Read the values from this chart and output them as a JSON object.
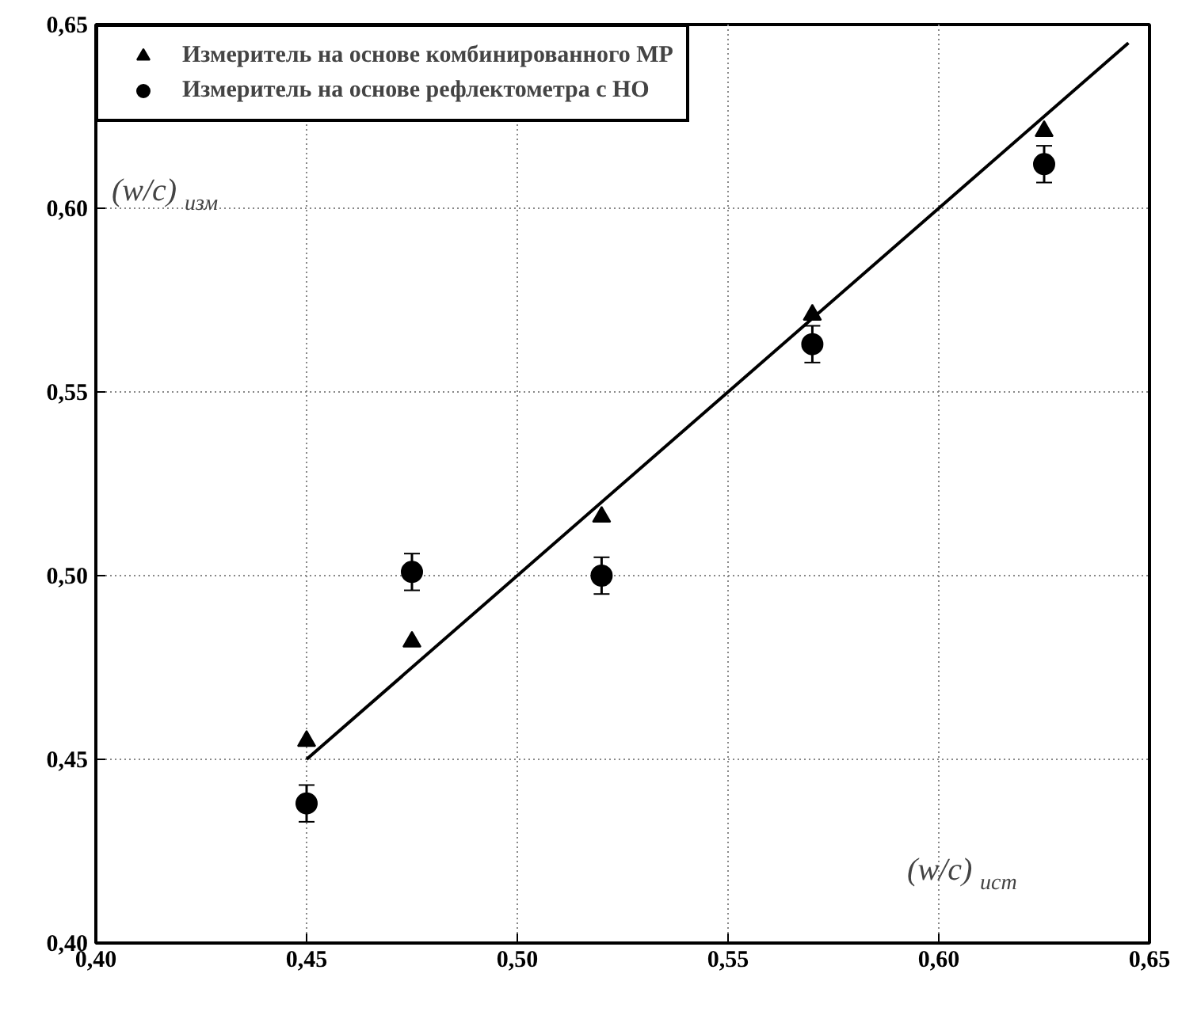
{
  "chart_data": {
    "type": "scatter",
    "xlabel": "(w/c)$_{ист}$",
    "ylabel": "(w/c)$_{изм}$",
    "x": [
      0.45,
      0.475,
      0.52,
      0.57,
      0.625
    ],
    "series": [
      {
        "name": "Измеритель на основе комбинированного МР",
        "color": "#000000",
        "marker": "triangle",
        "values": [
          0.455,
          0.482,
          0.516,
          0.571,
          0.621
        ]
      },
      {
        "name": "Измеритель на основе рефлектометра с НО",
        "color": "#000000",
        "marker": "circle",
        "values": [
          0.438,
          0.501,
          0.5,
          0.563,
          0.612
        ],
        "errors": [
          0.005,
          0.005,
          0.005,
          0.005,
          0.005
        ]
      },
      {
        "type": "line",
        "color": "#000000",
        "x": [
          0.45,
          0.645
        ],
        "values": [
          0.45,
          0.645
        ]
      }
    ],
    "xlim": [
      0.4,
      0.65
    ],
    "ylim": [
      0.4,
      0.65
    ],
    "xticks": [
      {
        "value": 0.4,
        "label": "0,40"
      },
      {
        "value": 0.45,
        "label": "0,45"
      },
      {
        "value": 0.5,
        "label": "0,50"
      },
      {
        "value": 0.55,
        "label": "0,55"
      },
      {
        "value": 0.6,
        "label": "0,60"
      },
      {
        "value": 0.65,
        "label": "0,65"
      }
    ],
    "yticks": [
      {
        "value": 0.4,
        "label": "0,40"
      },
      {
        "value": 0.45,
        "label": "0,45"
      },
      {
        "value": 0.5,
        "label": "0,50"
      },
      {
        "value": 0.55,
        "label": "0,55"
      },
      {
        "value": 0.6,
        "label": "0,60"
      },
      {
        "value": 0.65,
        "label": "0,65"
      }
    ],
    "grid": true,
    "legend": "top"
  }
}
